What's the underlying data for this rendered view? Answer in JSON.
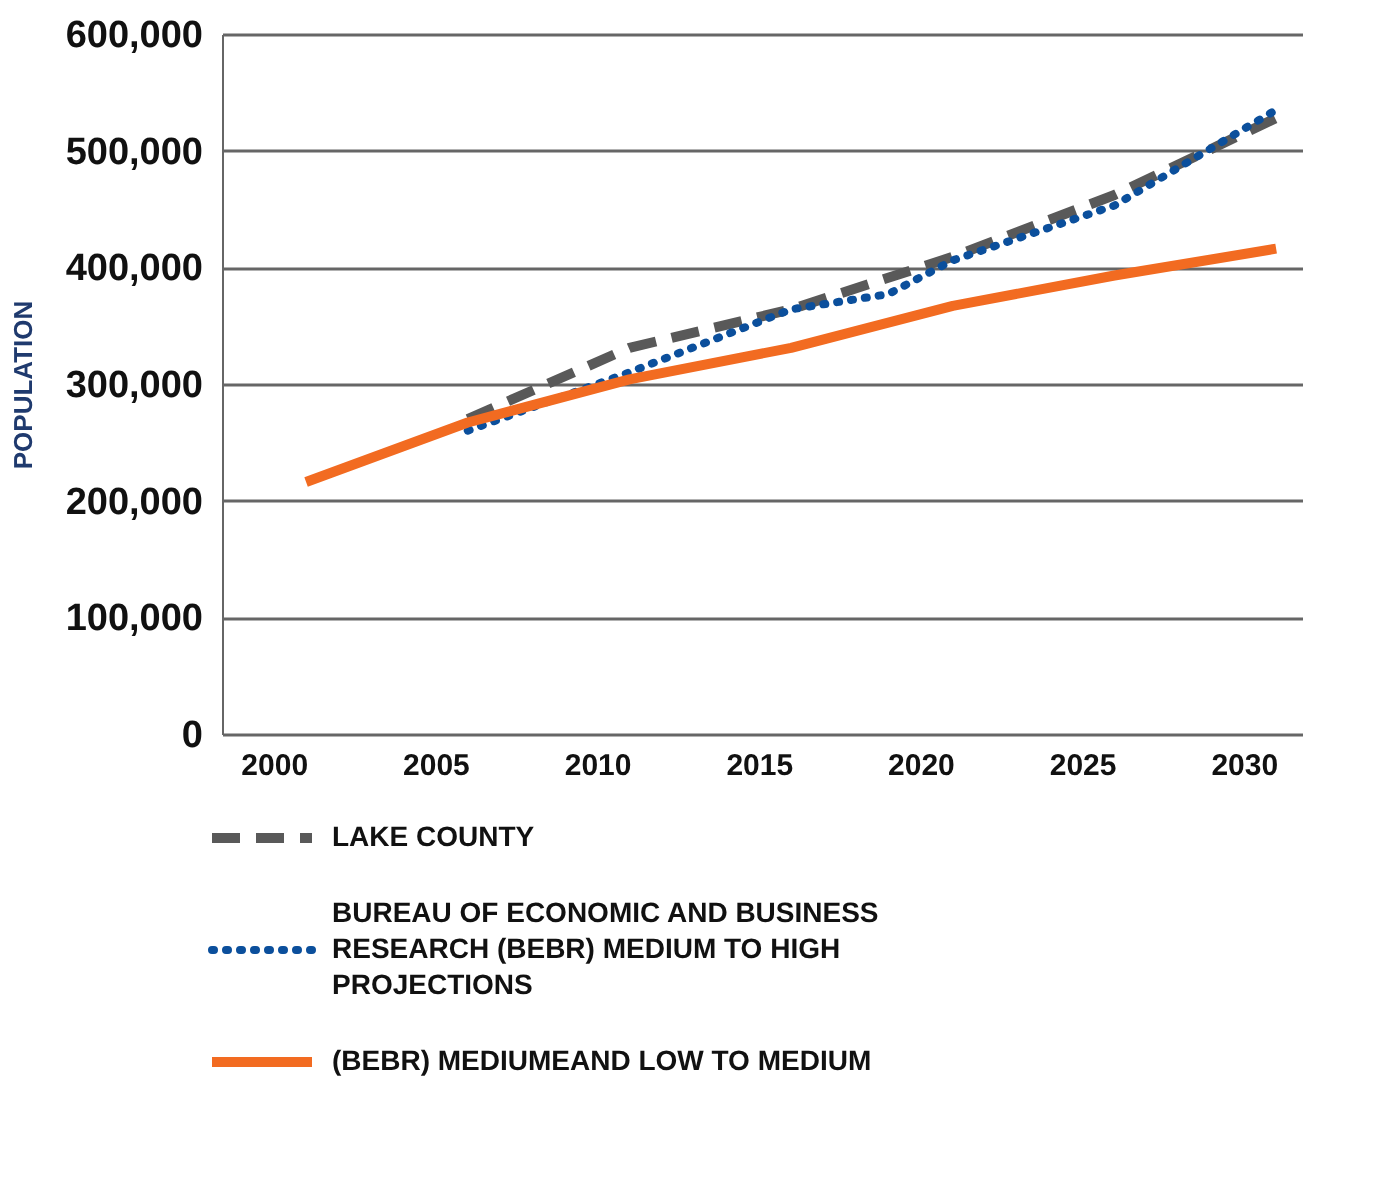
{
  "chart_data": {
    "type": "line",
    "ylabel": "POPULATION",
    "xlim": [
      1998.4,
      2031.8
    ],
    "xticks": [
      2000,
      2005,
      2010,
      2015,
      2020,
      2025,
      2030
    ],
    "ylim": [
      0,
      600000
    ],
    "yticks": [
      {
        "value": 0,
        "label": "0"
      },
      {
        "value": 100000,
        "label": "100,000"
      },
      {
        "value": 200000,
        "label": "200,000"
      },
      {
        "value": 300000,
        "label": "300,000"
      },
      {
        "value": 400000,
        "label": "400,000"
      },
      {
        "value": 500000,
        "label": "500,000"
      },
      {
        "value": 600000,
        "label": "600,000"
      }
    ],
    "grid": "y",
    "legend": "bottom",
    "marker": "none",
    "series": [
      {
        "name": "LAKE COUNTY",
        "color": "#595959",
        "line_style": "dashed",
        "x": [
          2006,
          2011,
          2016,
          2021,
          2026,
          2031
        ],
        "values": [
          270000,
          331000,
          364000,
          409000,
          462000,
          528000
        ]
      },
      {
        "name": "BUREAU OF ECONOMIC AND BUSINESS RESEARCH (BEBR) MEDIUM TO HIGH PROJECTIONS",
        "color": "#0b4f9c",
        "line_style": "dotted",
        "x": [
          2006,
          2011,
          2016,
          2019,
          2021,
          2026,
          2031
        ],
        "values": [
          260000,
          310000,
          364000,
          377000,
          406000,
          453000,
          535000
        ]
      },
      {
        "name": "(BEBR) MEDIUMEAND LOW TO MEDIUM",
        "color": "#f26b21",
        "line_style": "solid",
        "x": [
          2001,
          2006,
          2011,
          2016,
          2021,
          2026,
          2031
        ],
        "values": [
          216000,
          267000,
          304000,
          331000,
          367000,
          393000,
          416000
        ]
      }
    ]
  }
}
